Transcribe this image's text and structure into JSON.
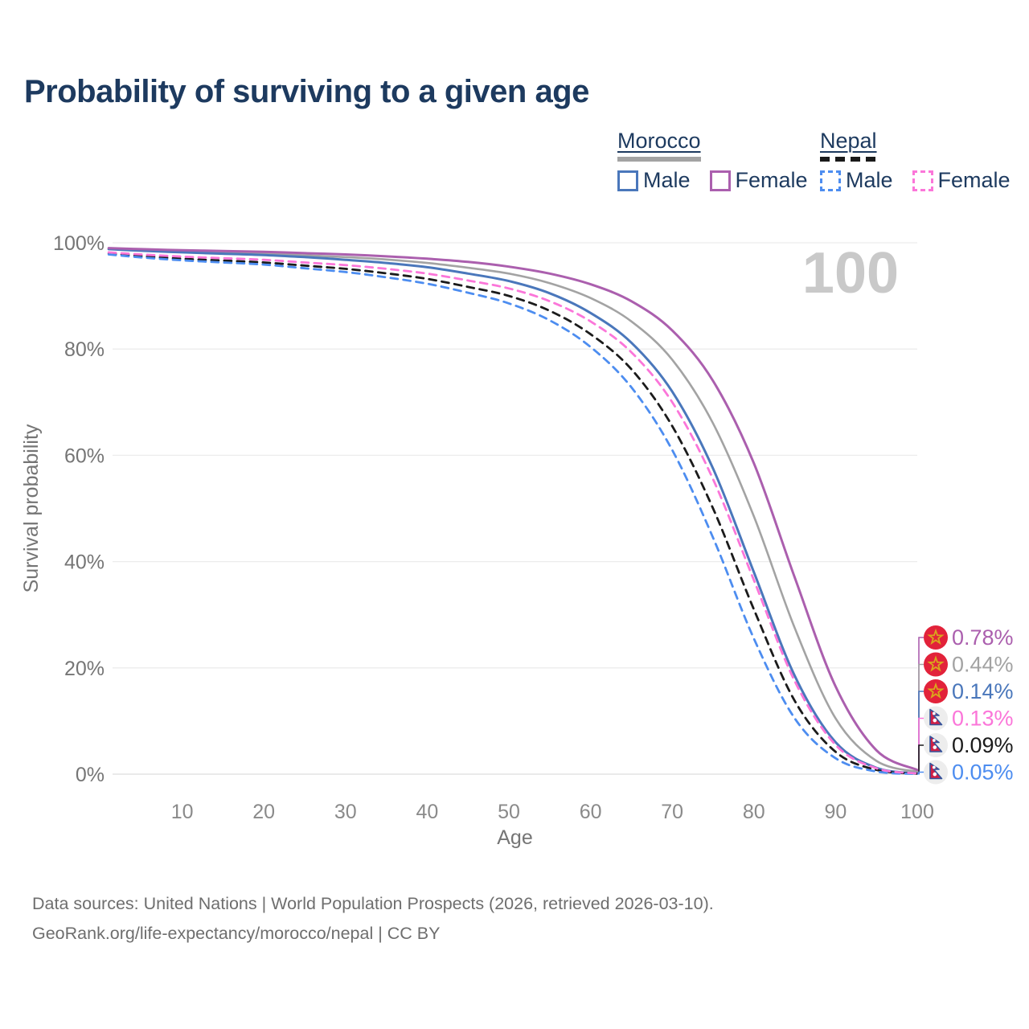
{
  "title": "Probability of surviving to a given age",
  "legend": {
    "groups": [
      {
        "name": "Morocco",
        "line_style": "solid",
        "bar_color": "#a3a3a3",
        "items": [
          {
            "label": "Male",
            "color": "#4a77bb",
            "dashed": false
          },
          {
            "label": "Female",
            "color": "#ab5fae",
            "dashed": false
          }
        ]
      },
      {
        "name": "Nepal",
        "line_style": "dashed",
        "bar_color": "#1a1a1a",
        "items": [
          {
            "label": "Male",
            "color": "#4d8df0",
            "dashed": true
          },
          {
            "label": "Female",
            "color": "#fb76d9",
            "dashed": true
          }
        ]
      }
    ]
  },
  "chart_data": {
    "type": "line",
    "title": "Probability of surviving to a given age",
    "xlabel": "Age",
    "ylabel": "Survival probability",
    "xlim": [
      1,
      100
    ],
    "ylim": [
      0,
      100
    ],
    "grid": "horizontal",
    "hover_age_label": "100",
    "xticks": [
      10,
      20,
      30,
      40,
      50,
      60,
      70,
      80,
      90,
      100
    ],
    "yticks": [
      {
        "value": 0,
        "label": "0%"
      },
      {
        "value": 20,
        "label": "20%"
      },
      {
        "value": 40,
        "label": "40%"
      },
      {
        "value": 60,
        "label": "60%"
      },
      {
        "value": 80,
        "label": "80%"
      },
      {
        "value": 100,
        "label": "100%"
      }
    ],
    "x": [
      1,
      5,
      10,
      15,
      20,
      25,
      30,
      35,
      40,
      45,
      50,
      55,
      60,
      65,
      70,
      75,
      80,
      85,
      90,
      95,
      100
    ],
    "series": [
      {
        "name": "Morocco Female",
        "country": "Morocco",
        "sex": "Female",
        "color": "#ab5fae",
        "dashed": false,
        "values": [
          99.0,
          98.8,
          98.6,
          98.45,
          98.3,
          98.05,
          97.8,
          97.45,
          97.0,
          96.4,
          95.5,
          94.2,
          92.2,
          89.0,
          83.5,
          74.0,
          58.5,
          37.0,
          16.5,
          4.5,
          0.78
        ],
        "end_label": "0.78%",
        "flag": "morocco"
      },
      {
        "name": "Morocco",
        "country": "Morocco",
        "sex": "Both",
        "color": "#a3a3a3",
        "dashed": false,
        "values": [
          98.9,
          98.65,
          98.4,
          98.2,
          98.0,
          97.65,
          97.3,
          96.85,
          96.2,
          95.3,
          94.2,
          92.4,
          89.6,
          85.2,
          78.0,
          66.0,
          48.5,
          27.5,
          10.5,
          2.5,
          0.44
        ],
        "end_label": "0.44%",
        "flag": "morocco"
      },
      {
        "name": "Morocco Male",
        "country": "Morocco",
        "sex": "Male",
        "color": "#4a77bb",
        "dashed": false,
        "values": [
          98.8,
          98.5,
          98.2,
          97.95,
          97.7,
          97.3,
          96.8,
          96.2,
          95.4,
          94.2,
          92.8,
          90.5,
          86.8,
          81.2,
          72.0,
          57.5,
          38.0,
          18.5,
          6.0,
          1.2,
          0.14
        ],
        "end_label": "0.14%",
        "flag": "morocco"
      },
      {
        "name": "Nepal Female",
        "country": "Nepal",
        "sex": "Female",
        "color": "#fb76d9",
        "dashed": true,
        "values": [
          98.2,
          97.8,
          97.4,
          97.1,
          96.8,
          96.3,
          95.8,
          95.1,
          94.2,
          92.9,
          91.4,
          89.0,
          85.2,
          79.4,
          70.0,
          55.5,
          36.5,
          17.5,
          5.5,
          1.1,
          0.13
        ],
        "end_label": "0.13%",
        "flag": "nepal"
      },
      {
        "name": "Nepal",
        "country": "Nepal",
        "sex": "Both",
        "color": "#1b1b1b",
        "dashed": true,
        "values": [
          98.0,
          97.5,
          97.0,
          96.65,
          96.3,
          95.7,
          95.1,
          94.25,
          93.2,
          91.7,
          90.0,
          87.2,
          82.8,
          76.2,
          65.5,
          50.0,
          31.0,
          13.8,
          4.2,
          0.8,
          0.09
        ],
        "end_label": "0.09%",
        "flag": "nepal"
      },
      {
        "name": "Nepal Male",
        "country": "Nepal",
        "sex": "Male",
        "color": "#4d8df0",
        "dashed": true,
        "values": [
          97.8,
          97.25,
          96.7,
          96.3,
          95.9,
          95.2,
          94.5,
          93.5,
          92.3,
          90.6,
          88.6,
          85.4,
          80.4,
          72.8,
          61.0,
          44.5,
          25.5,
          10.5,
          3.0,
          0.5,
          0.05
        ],
        "end_label": "0.05%",
        "flag": "nepal"
      }
    ],
    "end_labels_top_to_bottom": [
      "0.78%",
      "0.44%",
      "0.14%",
      "0.13%",
      "0.09%",
      "0.05%"
    ]
  },
  "footer": {
    "line1": "Data sources: United Nations | World Population Prospects (2026, retrieved 2026-03-10).",
    "line2": "GeoRank.org/life-expectancy/morocco/nepal | CC BY"
  }
}
